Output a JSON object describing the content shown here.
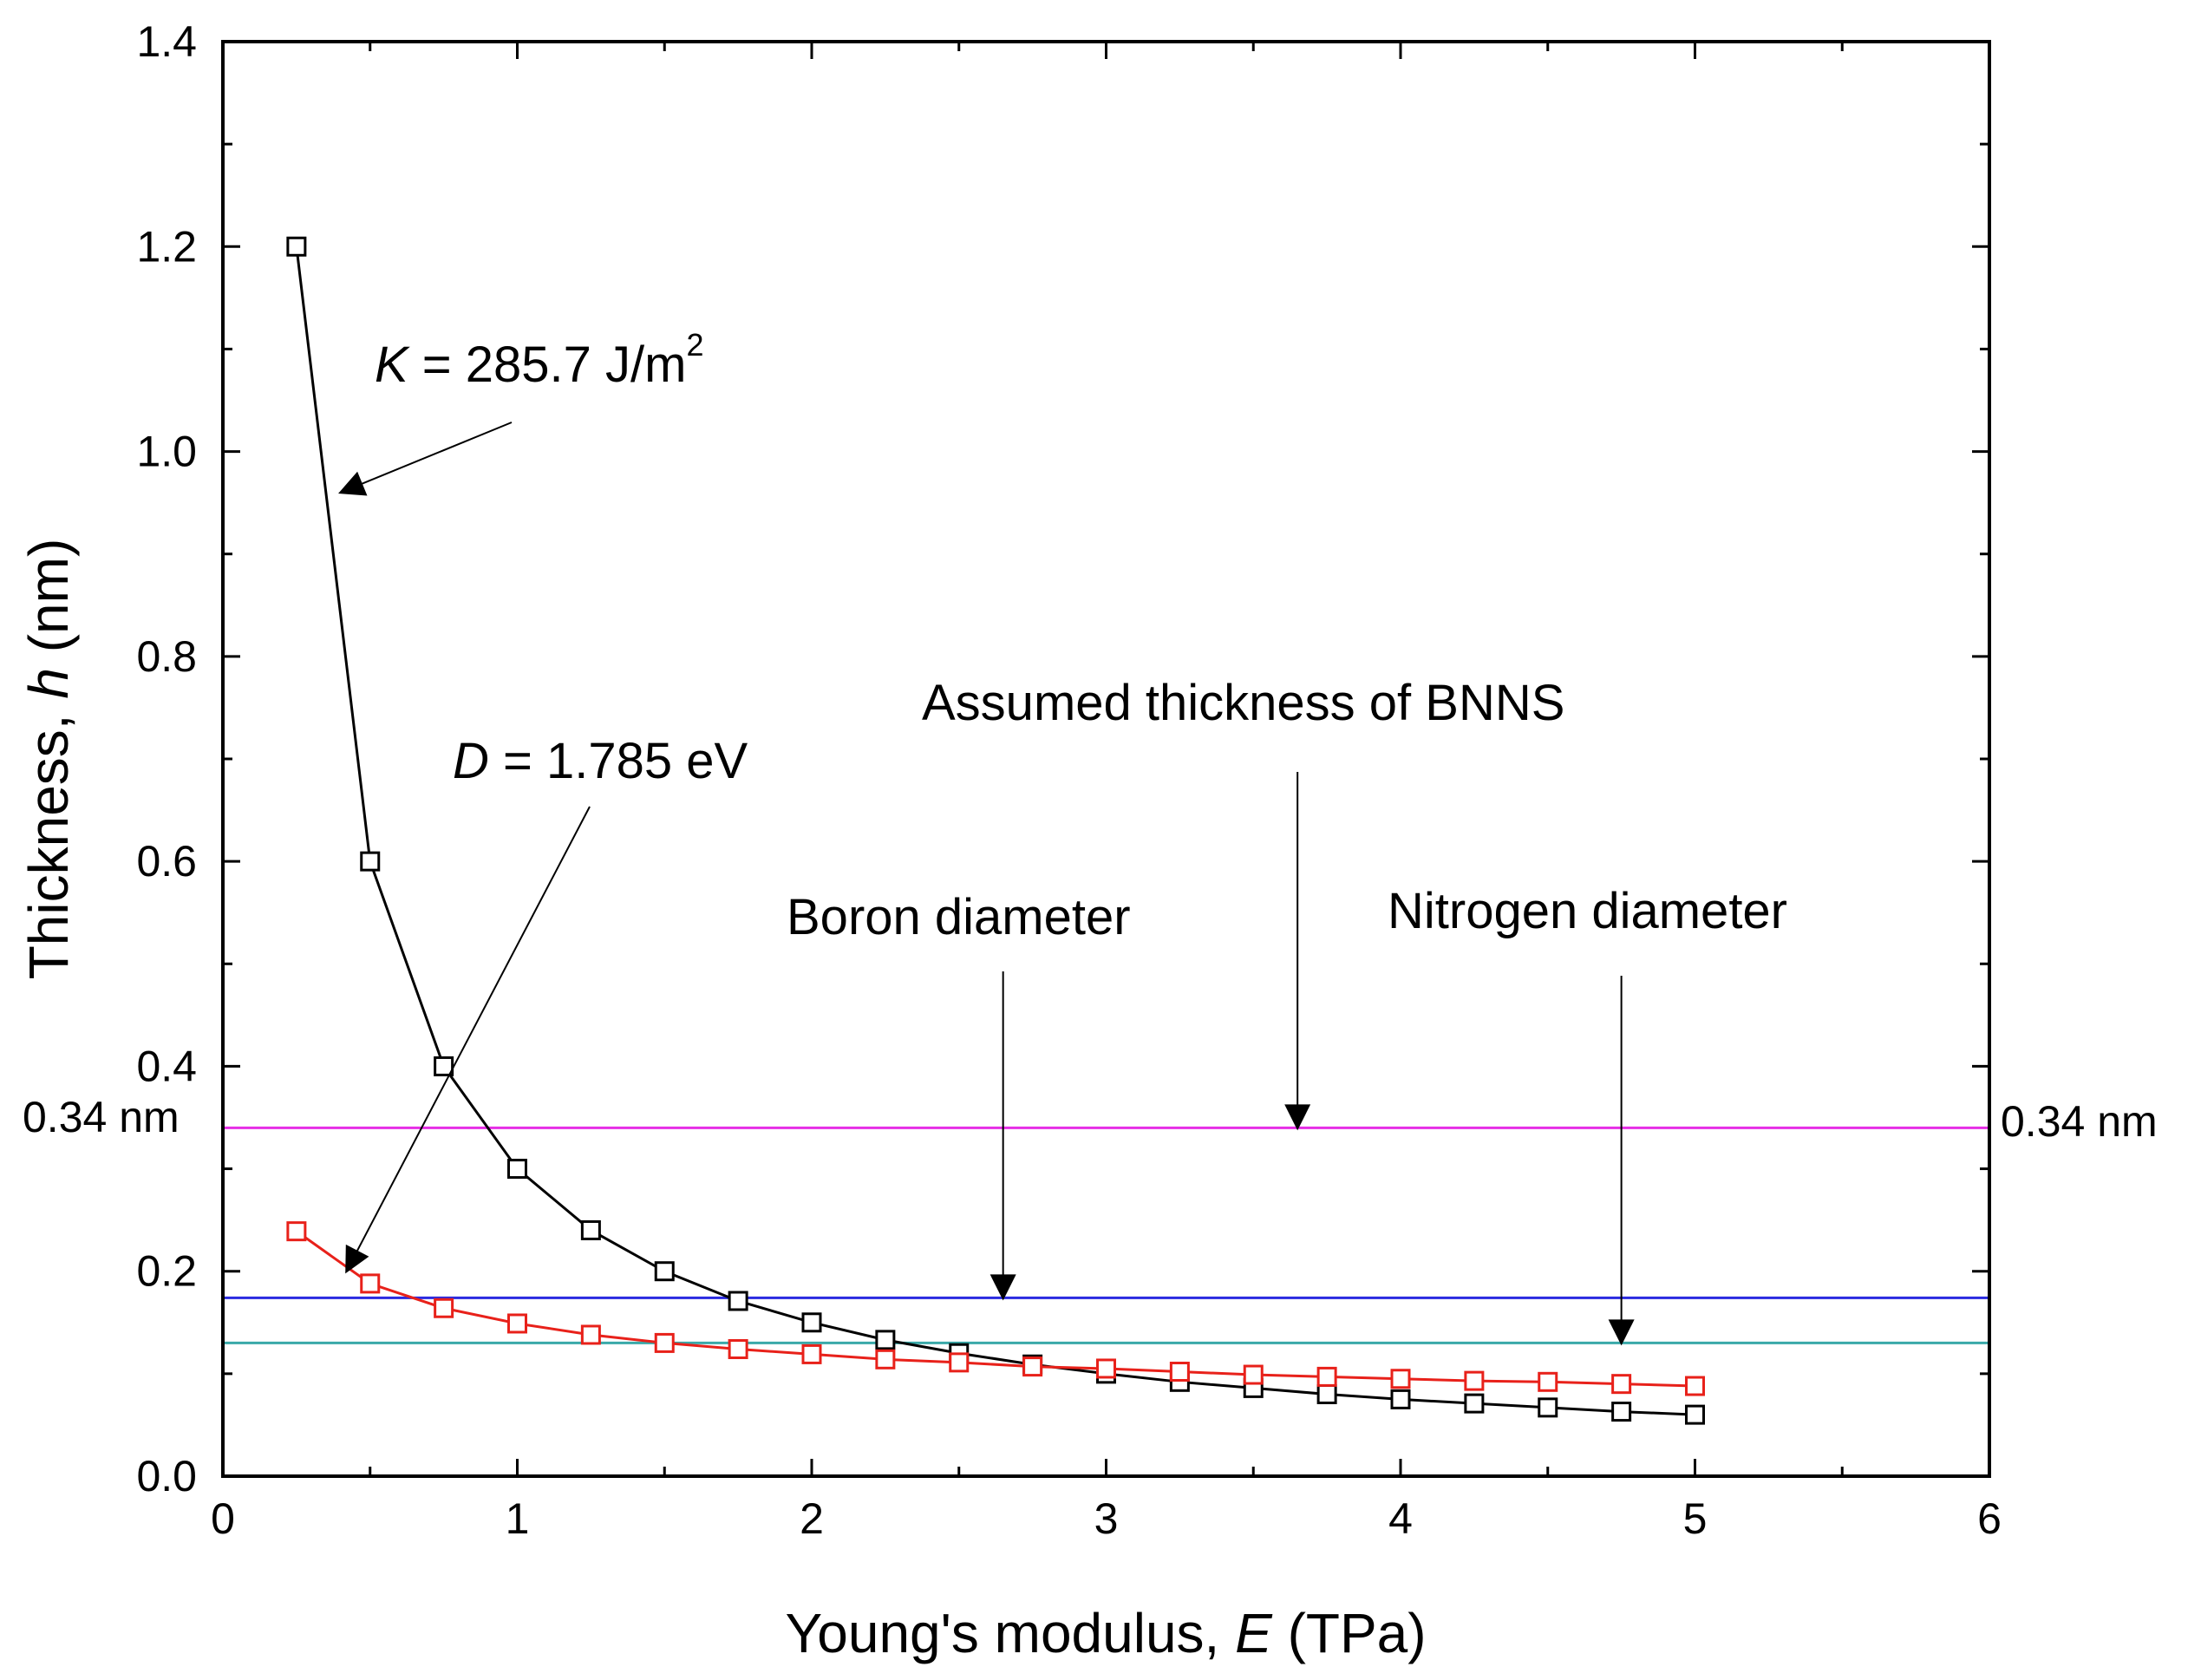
{
  "chart_data": {
    "type": "line",
    "title": "",
    "xlabel": {
      "prefix": "Young's modulus, ",
      "var": "E",
      "suffix": " (TPa)"
    },
    "ylabel": {
      "prefix": "Thickness, ",
      "var": "h",
      "suffix": " (nm)"
    },
    "xlim": [
      0,
      6
    ],
    "ylim": [
      0,
      1.4
    ],
    "xticks": [
      "0",
      "1",
      "2",
      "3",
      "4",
      "5",
      "6"
    ],
    "yticks": [
      "0.0",
      "0.2",
      "0.4",
      "0.6",
      "0.8",
      "1.0",
      "1.2",
      "1.4"
    ],
    "grid": false,
    "series": [
      {
        "name": "K = 285.7 J/m2",
        "color": "#000000",
        "marker": "open-square",
        "x": [
          0.25,
          0.5,
          0.75,
          1.0,
          1.25,
          1.5,
          1.75,
          2.0,
          2.25,
          2.5,
          2.75,
          3.0,
          3.25,
          3.5,
          3.75,
          4.0,
          4.25,
          4.5,
          4.75,
          5.0
        ],
        "y": [
          1.2,
          0.6,
          0.4,
          0.3,
          0.24,
          0.2,
          0.171,
          0.15,
          0.133,
          0.12,
          0.109,
          0.1,
          0.092,
          0.086,
          0.08,
          0.075,
          0.071,
          0.067,
          0.063,
          0.06
        ]
      },
      {
        "name": "D = 1.785 eV",
        "color": "#e8211a",
        "marker": "open-square",
        "x": [
          0.25,
          0.5,
          0.75,
          1.0,
          1.25,
          1.5,
          1.75,
          2.0,
          2.25,
          2.5,
          2.75,
          3.0,
          3.25,
          3.5,
          3.75,
          4.0,
          4.25,
          4.5,
          4.75,
          5.0
        ],
        "y": [
          0.239,
          0.188,
          0.164,
          0.149,
          0.138,
          0.13,
          0.124,
          0.119,
          0.114,
          0.111,
          0.107,
          0.105,
          0.102,
          0.099,
          0.097,
          0.095,
          0.093,
          0.092,
          0.09,
          0.088
        ]
      }
    ],
    "reference_lines": [
      {
        "name": "Assumed thickness of BNNS",
        "y": 0.34,
        "color": "#e62ee6"
      },
      {
        "name": "Boron diameter",
        "y": 0.174,
        "color": "#2a2ae0"
      },
      {
        "name": "Nitrogen diameter",
        "y": 0.13,
        "color": "#3aa9a9"
      }
    ],
    "annotations": {
      "k_label": {
        "var": "K",
        "text": " = 285.7 J/m",
        "sup": "2",
        "target": [
          0.4,
          0.96
        ]
      },
      "d_label": {
        "var": "D",
        "text": " = 1.785 eV",
        "target": [
          0.42,
          0.2
        ]
      },
      "assumed_label": {
        "text": "Assumed thickness of BNNS",
        "target": [
          3.65,
          0.34
        ]
      },
      "boron_label": {
        "text": "Boron diameter",
        "target": [
          2.65,
          0.174
        ]
      },
      "nitrogen_label": {
        "text": "Nitrogen diameter",
        "target": [
          4.75,
          0.13
        ]
      },
      "left_ref_label": {
        "text": "0.34 nm"
      },
      "right_ref_label": {
        "text": "0.34 nm"
      }
    }
  }
}
